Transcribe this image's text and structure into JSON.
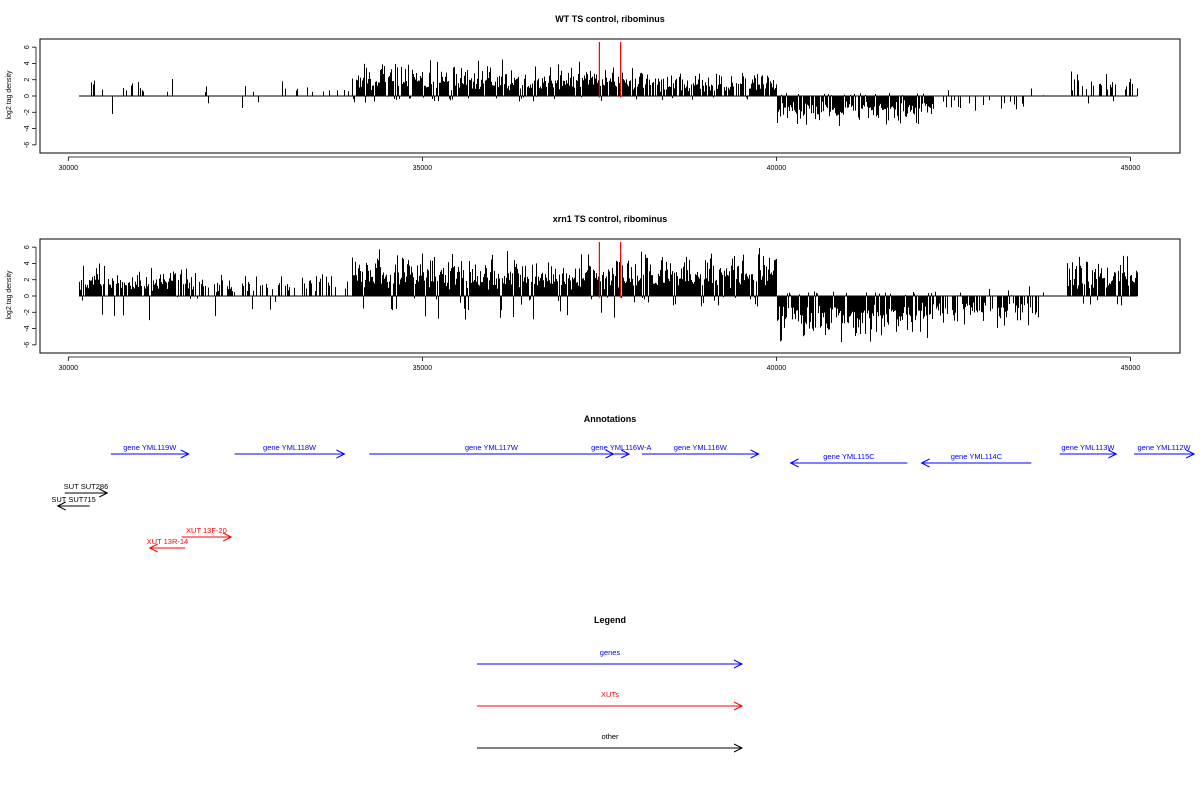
{
  "chart_data": [
    {
      "type": "bar",
      "title": "WT TS control, ribominus",
      "xlabel": "",
      "ylabel": "log2 tag density",
      "xlim": [
        29600,
        45700
      ],
      "ylim": [
        -7,
        7
      ],
      "xticks": [
        30000,
        35000,
        40000,
        45000
      ],
      "yticks": [
        -6,
        -4,
        -2,
        0,
        2,
        4,
        6
      ],
      "baseline": [
        30150,
        45100
      ],
      "markers": [
        37500,
        37800
      ],
      "marker_color": "#ff0000",
      "bar_color": "#000000",
      "segments": [
        {
          "start": 30150,
          "end": 34000,
          "density": 0.1,
          "pmax": 2.5,
          "nmax": 2.2
        },
        {
          "start": 34000,
          "end": 38000,
          "density": 0.95,
          "pmax": 4.6,
          "nmax": 0.8
        },
        {
          "start": 38000,
          "end": 40000,
          "density": 0.8,
          "pmax": 3.5,
          "nmax": 0.5
        },
        {
          "start": 40000,
          "end": 42200,
          "density": 0.95,
          "pmax": 0.4,
          "nmax": 4.3
        },
        {
          "start": 42200,
          "end": 43800,
          "density": 0.2,
          "pmax": 1.6,
          "nmax": 2.8
        },
        {
          "start": 43800,
          "end": 44100,
          "density": 0.02,
          "pmax": 0.5,
          "nmax": 0.5
        },
        {
          "start": 44100,
          "end": 45100,
          "density": 0.45,
          "pmax": 3.6,
          "nmax": 1.0
        }
      ]
    },
    {
      "type": "bar",
      "title": "xrn1 TS control, ribominus",
      "xlabel": "",
      "ylabel": "log2 tag density",
      "xlim": [
        29600,
        45700
      ],
      "ylim": [
        -7,
        7
      ],
      "xticks": [
        30000,
        35000,
        40000,
        45000
      ],
      "yticks": [
        -6,
        -4,
        -2,
        0,
        2,
        4,
        6
      ],
      "baseline": [
        30150,
        45100
      ],
      "markers": [
        37500,
        37800
      ],
      "marker_color": "#ff0000",
      "bar_color": "#000000",
      "segments": [
        {
          "start": 30150,
          "end": 31800,
          "density": 0.9,
          "pmax": 4.5,
          "nmax": 3.2
        },
        {
          "start": 31800,
          "end": 34000,
          "density": 0.35,
          "pmax": 3.0,
          "nmax": 2.6
        },
        {
          "start": 34000,
          "end": 38000,
          "density": 1.0,
          "pmax": 6.0,
          "nmax": 3.2
        },
        {
          "start": 38000,
          "end": 40000,
          "density": 1.0,
          "pmax": 6.5,
          "nmax": 1.5
        },
        {
          "start": 40000,
          "end": 42200,
          "density": 1.0,
          "pmax": 0.6,
          "nmax": 6.2
        },
        {
          "start": 42200,
          "end": 43700,
          "density": 0.7,
          "pmax": 1.2,
          "nmax": 4.5
        },
        {
          "start": 43700,
          "end": 44100,
          "density": 0.05,
          "pmax": 0.5,
          "nmax": 0.5
        },
        {
          "start": 44100,
          "end": 45100,
          "density": 0.9,
          "pmax": 5.6,
          "nmax": 1.2
        }
      ]
    }
  ],
  "annotations": {
    "title": "Annotations",
    "features": [
      {
        "label": "gene YML119W",
        "start": 30600,
        "end": 31700,
        "dir": "right",
        "row": 0,
        "color": "#0000ff"
      },
      {
        "label": "gene YML118W",
        "start": 32350,
        "end": 33900,
        "dir": "right",
        "row": 0,
        "color": "#0000ff"
      },
      {
        "label": "gene YML117W",
        "start": 34250,
        "end": 37700,
        "dir": "right",
        "row": 0,
        "color": "#0000ff"
      },
      {
        "label": "gene YML116W-A",
        "start": 37700,
        "end": 37920,
        "dir": "right",
        "row": 0,
        "color": "#0000ff"
      },
      {
        "label": "gene YML116W",
        "start": 38100,
        "end": 39750,
        "dir": "right",
        "row": 0,
        "color": "#0000ff"
      },
      {
        "label": "gene YML115C",
        "start": 40200,
        "end": 41850,
        "dir": "left",
        "row": 1,
        "color": "#0000ff"
      },
      {
        "label": "gene YML114C",
        "start": 42050,
        "end": 43600,
        "dir": "left",
        "row": 1,
        "color": "#0000ff"
      },
      {
        "label": "gene YML113W",
        "start": 44000,
        "end": 44800,
        "dir": "right",
        "row": 0,
        "color": "#0000ff"
      },
      {
        "label": "gene YML112W",
        "start": 45050,
        "end": 45900,
        "dir": "right",
        "row": 0,
        "color": "#0000ff"
      },
      {
        "label": "SUT SUT286",
        "start": 29950,
        "end": 30550,
        "dir": "right",
        "row": 2,
        "color": "#000000"
      },
      {
        "label": "SUT SUT715",
        "start": 29850,
        "end": 30300,
        "dir": "left",
        "row": 3,
        "color": "#000000"
      },
      {
        "label": "XUT 13F-20",
        "start": 31600,
        "end": 32300,
        "dir": "right",
        "row": 4,
        "color": "#ff0000"
      },
      {
        "label": "XUT 13R-14",
        "start": 31150,
        "end": 31650,
        "dir": "left",
        "row": 5,
        "color": "#ff0000"
      }
    ]
  },
  "legend": {
    "title": "Legend",
    "items": [
      {
        "label": "genes",
        "color": "#0000ff"
      },
      {
        "label": "XUTs",
        "color": "#ff0000"
      },
      {
        "label": "other",
        "color": "#000000"
      }
    ]
  }
}
